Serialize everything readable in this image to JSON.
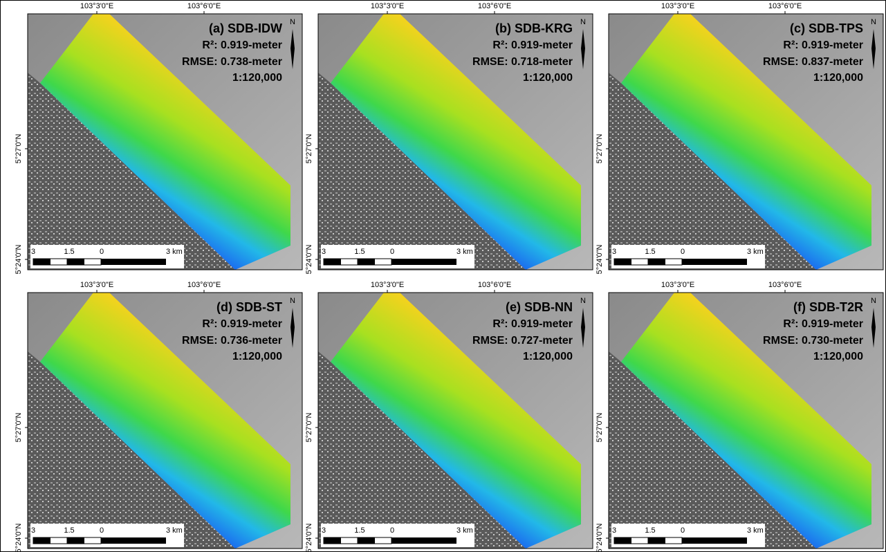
{
  "map_labels": {
    "x_ticks": [
      "103°3'0\"E",
      "103°6'0\"E"
    ],
    "y_ticks": [
      "5°27'0\"N",
      "5°24'0\"N"
    ],
    "scale_labels": [
      "3",
      "1.5",
      "0",
      "3 km"
    ],
    "north": "N"
  },
  "panels": [
    {
      "title": "(a) SDB-IDW",
      "r2": "R²: 0.919-meter",
      "rmse": "RMSE: 0.738-meter",
      "scale": "1:120,000"
    },
    {
      "title": "(b) SDB-KRG",
      "r2": "R²: 0.919-meter",
      "rmse": "RMSE: 0.718-meter",
      "scale": "1:120,000"
    },
    {
      "title": "(c) SDB-TPS",
      "r2": "R²: 0.919-meter",
      "rmse": "RMSE: 0.837-meter",
      "scale": "1:120,000"
    },
    {
      "title": "(d) SDB-ST",
      "r2": "R²: 0.919-meter",
      "rmse": "RMSE: 0.736-meter",
      "scale": "1:120,000"
    },
    {
      "title": "(e) SDB-NN",
      "r2": "R²: 0.919-meter",
      "rmse": "RMSE: 0.727-meter",
      "scale": "1:120,000"
    },
    {
      "title": "(f) SDB-T2R",
      "r2": "R²: 0.919-meter",
      "rmse": "RMSE: 0.730-meter",
      "scale": "1:120,000"
    }
  ]
}
